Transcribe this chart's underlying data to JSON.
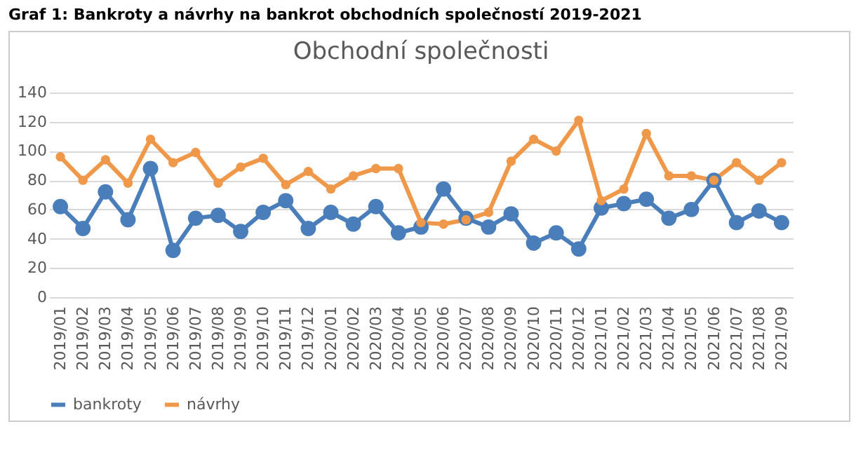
{
  "chart_data": {
    "type": "line",
    "title": "Graf 1: Bankroty a návrhy na bankrot obchodních společností 2019-2021",
    "subtitle": "Obchodní společnosti",
    "categories": [
      "2019/01",
      "2019/02",
      "2019/03",
      "2019/04",
      "2019/05",
      "2019/06",
      "2019/07",
      "2019/08",
      "2019/09",
      "2019/10",
      "2019/11",
      "2019/12",
      "2020/01",
      "2020/02",
      "2020/03",
      "2020/04",
      "2020/05",
      "2020/06",
      "2020/07",
      "2020/08",
      "2020/09",
      "2020/10",
      "2020/11",
      "2020/12",
      "2021/01",
      "2021/02",
      "2021/03",
      "2021/04",
      "2021/05",
      "2021/06",
      "2021/07",
      "2021/08",
      "2021/09"
    ],
    "series": [
      {
        "name": "bankroty",
        "color": "#4a7ebb",
        "values": [
          62,
          47,
          72,
          53,
          88,
          32,
          54,
          56,
          45,
          58,
          66,
          47,
          58,
          50,
          62,
          44,
          48,
          74,
          54,
          48,
          57,
          37,
          44,
          33,
          61,
          64,
          67,
          54,
          60,
          80,
          51,
          59,
          51
        ]
      },
      {
        "name": "návrhy",
        "color": "#f0984a",
        "values": [
          96,
          80,
          94,
          78,
          108,
          92,
          99,
          78,
          89,
          95,
          77,
          86,
          74,
          83,
          88,
          88,
          51,
          50,
          53,
          58,
          93,
          108,
          100,
          121,
          66,
          74,
          112,
          83,
          83,
          80,
          92,
          80,
          92
        ]
      }
    ],
    "ylim": [
      0,
      140
    ],
    "yticks": [
      0,
      20,
      40,
      60,
      80,
      100,
      120,
      140
    ],
    "grid": "y",
    "legend": "bottom",
    "marker": "circle",
    "line_style": "solid"
  }
}
